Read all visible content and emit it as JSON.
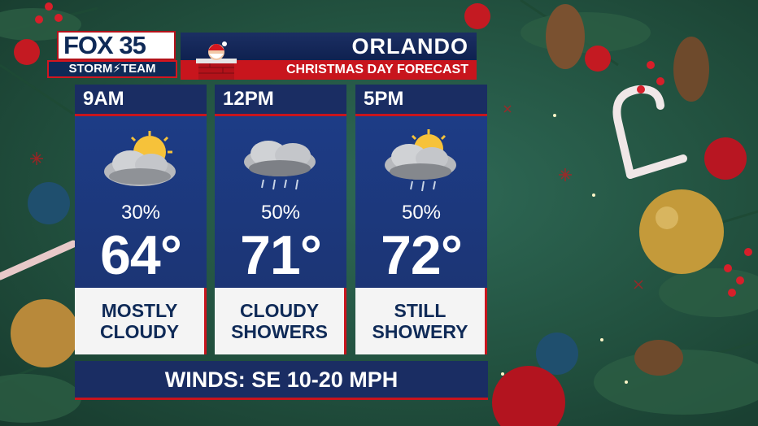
{
  "brand": {
    "logo_main": "FOX 35",
    "logo_sub": "STORM⚡TEAM"
  },
  "header": {
    "city": "ORLANDO",
    "subtitle": "CHRISTMAS DAY FORECAST",
    "icon": "santa-chimney-icon"
  },
  "panels": [
    {
      "time": "9AM",
      "icon": "sun-cloud-icon",
      "precip": "30%",
      "temp": "64°",
      "cond1": "MOSTLY",
      "cond2": "CLOUDY"
    },
    {
      "time": "12PM",
      "icon": "cloud-rain-icon",
      "precip": "50%",
      "temp": "71°",
      "cond1": "CLOUDY",
      "cond2": "SHOWERS"
    },
    {
      "time": "5PM",
      "icon": "sun-cloud-rain-icon",
      "precip": "50%",
      "temp": "72°",
      "cond1": "STILL",
      "cond2": "SHOWERY"
    }
  ],
  "winds": "WINDS: SE 10-20 MPH",
  "colors": {
    "navy": "#1a2d63",
    "red": "#c8151d",
    "background_green": "#2f6a57"
  }
}
